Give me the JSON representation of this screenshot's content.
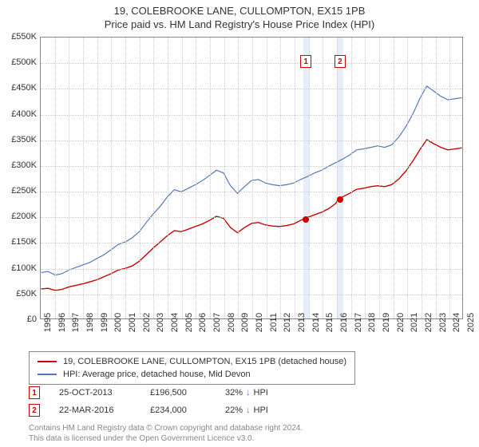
{
  "title": {
    "line1": "19, COLEBROOKE LANE, CULLOMPTON, EX15 1PB",
    "line2": "Price paid vs. HM Land Registry's House Price Index (HPI)"
  },
  "chart": {
    "type": "line",
    "x_start_year": 1995,
    "x_end_year": 2025,
    "y_min": 0,
    "y_max": 550,
    "y_ticks": [
      0,
      50,
      100,
      150,
      200,
      250,
      300,
      350,
      400,
      450,
      500,
      550
    ],
    "y_tick_prefix": "£",
    "y_tick_suffix": "K",
    "x_ticks": [
      1995,
      1996,
      1997,
      1998,
      1999,
      2000,
      2001,
      2002,
      2003,
      2004,
      2005,
      2006,
      2007,
      2008,
      2009,
      2010,
      2011,
      2012,
      2013,
      2014,
      2015,
      2016,
      2017,
      2018,
      2019,
      2020,
      2021,
      2022,
      2023,
      2024,
      2025
    ],
    "grid_color": "#cccccc",
    "plot_border_color": "#888888",
    "background_color": "#ffffff",
    "sale_band_color": "#e8eef7",
    "series": [
      {
        "name": "hpi",
        "color": "#5577bb",
        "width": 1.2,
        "legend": "HPI: Average price, detached house, Mid Devon",
        "values": [
          [
            1995.0,
            90
          ],
          [
            1995.5,
            92
          ],
          [
            1996.0,
            85
          ],
          [
            1996.5,
            88
          ],
          [
            1997.0,
            95
          ],
          [
            1997.5,
            100
          ],
          [
            1998.0,
            105
          ],
          [
            1998.5,
            110
          ],
          [
            1999.0,
            118
          ],
          [
            1999.5,
            125
          ],
          [
            2000.0,
            135
          ],
          [
            2000.5,
            145
          ],
          [
            2001.0,
            150
          ],
          [
            2001.5,
            158
          ],
          [
            2002.0,
            170
          ],
          [
            2002.5,
            188
          ],
          [
            2003.0,
            205
          ],
          [
            2003.5,
            220
          ],
          [
            2004.0,
            238
          ],
          [
            2004.5,
            252
          ],
          [
            2005.0,
            248
          ],
          [
            2005.5,
            255
          ],
          [
            2006.0,
            262
          ],
          [
            2006.5,
            270
          ],
          [
            2007.0,
            280
          ],
          [
            2007.5,
            290
          ],
          [
            2008.0,
            285
          ],
          [
            2008.5,
            260
          ],
          [
            2009.0,
            245
          ],
          [
            2009.5,
            258
          ],
          [
            2010.0,
            270
          ],
          [
            2010.5,
            272
          ],
          [
            2011.0,
            265
          ],
          [
            2011.5,
            262
          ],
          [
            2012.0,
            260
          ],
          [
            2012.5,
            262
          ],
          [
            2013.0,
            265
          ],
          [
            2013.5,
            272
          ],
          [
            2014.0,
            278
          ],
          [
            2014.5,
            285
          ],
          [
            2015.0,
            290
          ],
          [
            2015.5,
            298
          ],
          [
            2016.0,
            305
          ],
          [
            2016.5,
            312
          ],
          [
            2017.0,
            320
          ],
          [
            2017.5,
            330
          ],
          [
            2018.0,
            332
          ],
          [
            2018.5,
            335
          ],
          [
            2019.0,
            338
          ],
          [
            2019.5,
            335
          ],
          [
            2020.0,
            340
          ],
          [
            2020.5,
            355
          ],
          [
            2021.0,
            375
          ],
          [
            2021.5,
            400
          ],
          [
            2022.0,
            430
          ],
          [
            2022.5,
            455
          ],
          [
            2023.0,
            445
          ],
          [
            2023.5,
            435
          ],
          [
            2024.0,
            428
          ],
          [
            2024.5,
            430
          ],
          [
            2025.0,
            432
          ]
        ]
      },
      {
        "name": "property",
        "color": "#cc0000",
        "width": 1.4,
        "legend": "19, COLEBROOKE LANE, CULLOMPTON, EX15 1PB (detached house)",
        "values": [
          [
            1995.0,
            58
          ],
          [
            1995.5,
            59
          ],
          [
            1996.0,
            55
          ],
          [
            1996.5,
            57
          ],
          [
            1997.0,
            62
          ],
          [
            1997.5,
            65
          ],
          [
            1998.0,
            68
          ],
          [
            1998.5,
            72
          ],
          [
            1999.0,
            76
          ],
          [
            1999.5,
            82
          ],
          [
            2000.0,
            88
          ],
          [
            2000.5,
            95
          ],
          [
            2001.0,
            98
          ],
          [
            2001.5,
            103
          ],
          [
            2002.0,
            112
          ],
          [
            2002.5,
            125
          ],
          [
            2003.0,
            138
          ],
          [
            2003.5,
            150
          ],
          [
            2004.0,
            162
          ],
          [
            2004.5,
            172
          ],
          [
            2005.0,
            170
          ],
          [
            2005.5,
            175
          ],
          [
            2006.0,
            180
          ],
          [
            2006.5,
            185
          ],
          [
            2007.0,
            192
          ],
          [
            2007.5,
            200
          ],
          [
            2008.0,
            196
          ],
          [
            2008.5,
            178
          ],
          [
            2009.0,
            168
          ],
          [
            2009.5,
            178
          ],
          [
            2010.0,
            186
          ],
          [
            2010.5,
            188
          ],
          [
            2011.0,
            183
          ],
          [
            2011.5,
            181
          ],
          [
            2012.0,
            180
          ],
          [
            2012.5,
            182
          ],
          [
            2013.0,
            185
          ],
          [
            2013.5,
            192
          ],
          [
            2013.8,
            196
          ],
          [
            2014.0,
            198
          ],
          [
            2014.5,
            203
          ],
          [
            2015.0,
            208
          ],
          [
            2015.5,
            215
          ],
          [
            2016.0,
            225
          ],
          [
            2016.2,
            234
          ],
          [
            2016.5,
            238
          ],
          [
            2017.0,
            245
          ],
          [
            2017.5,
            253
          ],
          [
            2018.0,
            255
          ],
          [
            2018.5,
            258
          ],
          [
            2019.0,
            260
          ],
          [
            2019.5,
            258
          ],
          [
            2020.0,
            262
          ],
          [
            2020.5,
            273
          ],
          [
            2021.0,
            288
          ],
          [
            2021.5,
            308
          ],
          [
            2022.0,
            330
          ],
          [
            2022.5,
            350
          ],
          [
            2023.0,
            342
          ],
          [
            2023.5,
            335
          ],
          [
            2024.0,
            330
          ],
          [
            2024.5,
            332
          ],
          [
            2025.0,
            334
          ]
        ]
      }
    ],
    "sale_markers": [
      {
        "n": "1",
        "year": 2013.8,
        "price": 196.5,
        "band_start": 2013.6,
        "band_end": 2014.0
      },
      {
        "n": "2",
        "year": 2016.22,
        "price": 234,
        "band_start": 2016.0,
        "band_end": 2016.44
      }
    ],
    "marker_dot_color": "#cc0000"
  },
  "sales": [
    {
      "n": "1",
      "date": "25-OCT-2013",
      "price": "£196,500",
      "pct": "32%",
      "arrow": "↓",
      "suffix": "HPI"
    },
    {
      "n": "2",
      "date": "22-MAR-2016",
      "price": "£234,000",
      "pct": "22%",
      "arrow": "↓",
      "suffix": "HPI"
    }
  ],
  "footer": {
    "line1": "Contains HM Land Registry data © Crown copyright and database right 2024.",
    "line2": "This data is licensed under the Open Government Licence v3.0."
  },
  "arrow_color": "#5577bb"
}
